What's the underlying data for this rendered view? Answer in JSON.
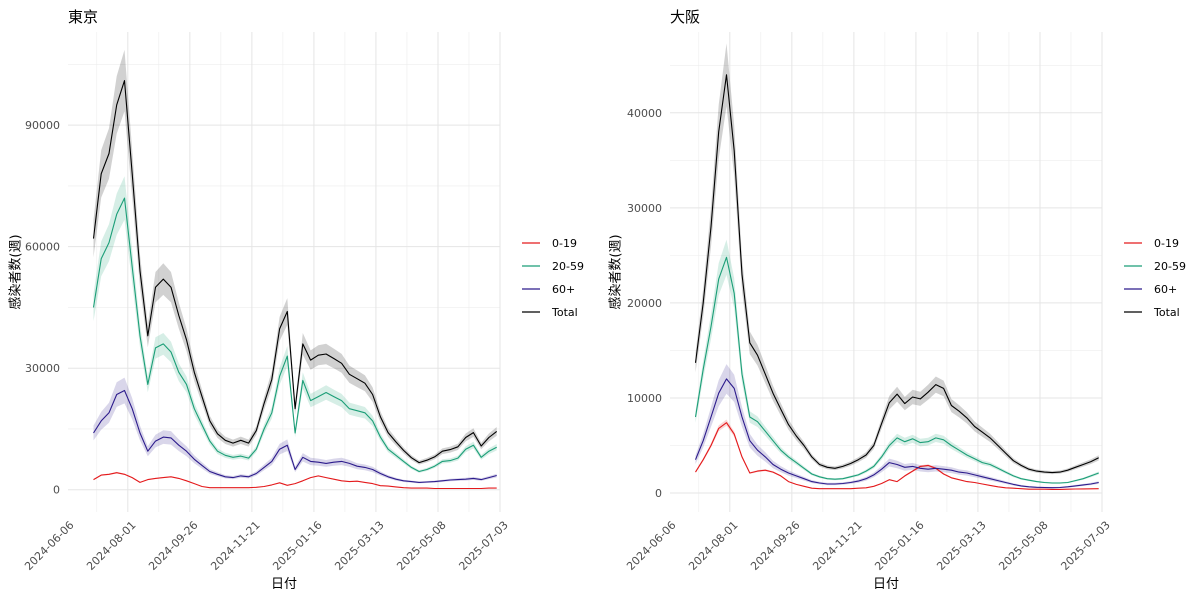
{
  "chart_data": [
    {
      "type": "line",
      "title": "東京",
      "xlabel": "日付",
      "ylabel": "感染者数(週)",
      "x_tick_labels": [
        "2024-06-06",
        "2024-08-01",
        "2024-09-26",
        "2024-11-21",
        "2025-01-16",
        "2025-03-13",
        "2025-05-08",
        "2025-07-03"
      ],
      "y_ticks": [
        0,
        30000,
        60000,
        90000
      ],
      "y_tick_labels": [
        "0",
        "30000",
        "60000",
        "90000"
      ],
      "ylim": [
        -5500,
        113000
      ],
      "xlim": [
        "2024-06-08",
        "2025-07-03"
      ],
      "grid": true,
      "legend": "right",
      "x": [
        "2024-07-01",
        "2024-07-08",
        "2024-07-15",
        "2024-07-22",
        "2024-07-29",
        "2024-08-05",
        "2024-08-12",
        "2024-08-19",
        "2024-08-26",
        "2024-09-02",
        "2024-09-09",
        "2024-09-16",
        "2024-09-23",
        "2024-09-30",
        "2024-10-07",
        "2024-10-14",
        "2024-10-21",
        "2024-10-28",
        "2024-11-04",
        "2024-11-11",
        "2024-11-18",
        "2024-11-25",
        "2024-12-02",
        "2024-12-09",
        "2024-12-16",
        "2024-12-23",
        "2024-12-30",
        "2025-01-06",
        "2025-01-13",
        "2025-01-20",
        "2025-01-27",
        "2025-02-03",
        "2025-02-10",
        "2025-02-17",
        "2025-02-24",
        "2025-03-03",
        "2025-03-10",
        "2025-03-17",
        "2025-03-24",
        "2025-03-31",
        "2025-04-07",
        "2025-04-14",
        "2025-04-21",
        "2025-04-28",
        "2025-05-05",
        "2025-05-12",
        "2025-05-19",
        "2025-05-26",
        "2025-06-02",
        "2025-06-09",
        "2025-06-16",
        "2025-06-23",
        "2025-06-30"
      ],
      "series": [
        {
          "name": "0-19",
          "color": "#e41a1c",
          "values": [
            2500,
            3600,
            3800,
            4200,
            3800,
            3000,
            1800,
            2500,
            2800,
            3000,
            3200,
            2800,
            2200,
            1500,
            800,
            500,
            500,
            500,
            500,
            500,
            500,
            600,
            800,
            1200,
            1700,
            1100,
            1500,
            2200,
            3000,
            3400,
            3000,
            2600,
            2200,
            2000,
            2100,
            1800,
            1500,
            1000,
            900,
            700,
            500,
            400,
            400,
            400,
            300,
            300,
            300,
            300,
            300,
            300,
            300,
            400,
            400
          ]
        },
        {
          "name": "20-59",
          "color": "#1b9e77",
          "values": [
            45000,
            57000,
            61000,
            68000,
            72000,
            55000,
            38000,
            26000,
            35000,
            36000,
            34000,
            29000,
            26000,
            20000,
            16000,
            12000,
            9500,
            8500,
            8000,
            8300,
            7800,
            10000,
            15000,
            19000,
            28000,
            33000,
            14000,
            27000,
            22000,
            23000,
            24000,
            23000,
            22000,
            20000,
            19500,
            19000,
            17000,
            13000,
            10000,
            8500,
            7000,
            5500,
            4500,
            5000,
            5800,
            7000,
            7200,
            7800,
            10000,
            11000,
            8000,
            9500,
            10500
          ]
        },
        {
          "name": "60+",
          "color": "#2c1b8c",
          "values": [
            14000,
            17000,
            19000,
            23500,
            24500,
            20000,
            14000,
            9500,
            12000,
            13000,
            12800,
            11000,
            9500,
            7500,
            6000,
            4500,
            3800,
            3200,
            3000,
            3400,
            3200,
            4000,
            5500,
            7000,
            10000,
            11000,
            5000,
            8000,
            7000,
            6800,
            6500,
            6800,
            7000,
            6500,
            5800,
            5500,
            5000,
            4000,
            3200,
            2600,
            2200,
            2000,
            1800,
            1900,
            2000,
            2200,
            2400,
            2500,
            2600,
            2800,
            2500,
            3000,
            3500
          ]
        },
        {
          "name": "Total",
          "color": "#000000",
          "values": [
            62000,
            78000,
            83000,
            95000,
            101000,
            78000,
            54000,
            38000,
            50000,
            52000,
            50000,
            43000,
            37000,
            29000,
            23000,
            17000,
            13800,
            12200,
            11500,
            12200,
            11500,
            14600,
            21300,
            27200,
            39700,
            44000,
            20000,
            36000,
            32000,
            33200,
            33500,
            32400,
            31200,
            28500,
            27400,
            26300,
            23500,
            18000,
            14100,
            11800,
            9700,
            7900,
            6700,
            7300,
            8100,
            9500,
            9900,
            10600,
            12900,
            14100,
            10800,
            12900,
            14400
          ]
        }
      ]
    },
    {
      "type": "line",
      "title": "大阪",
      "xlabel": "日付",
      "ylabel": "感染者数(週)",
      "x_tick_labels": [
        "2024-06-06",
        "2024-08-01",
        "2024-09-26",
        "2024-11-21",
        "2025-01-16",
        "2025-03-13",
        "2025-05-08",
        "2025-07-03"
      ],
      "y_ticks": [
        0,
        10000,
        20000,
        30000,
        40000
      ],
      "y_tick_labels": [
        "0",
        "10000",
        "20000",
        "30000",
        "40000"
      ],
      "ylim": [
        -2000,
        48500
      ],
      "xlim": [
        "2024-06-08",
        "2025-07-03"
      ],
      "grid": true,
      "legend": "right",
      "x": [
        "2024-07-01",
        "2024-07-08",
        "2024-07-15",
        "2024-07-22",
        "2024-07-29",
        "2024-08-05",
        "2024-08-12",
        "2024-08-19",
        "2024-08-26",
        "2024-09-02",
        "2024-09-09",
        "2024-09-16",
        "2024-09-23",
        "2024-09-30",
        "2024-10-07",
        "2024-10-14",
        "2024-10-21",
        "2024-10-28",
        "2024-11-04",
        "2024-11-11",
        "2024-11-18",
        "2024-11-25",
        "2024-12-02",
        "2024-12-09",
        "2024-12-16",
        "2024-12-23",
        "2024-12-30",
        "2025-01-06",
        "2025-01-13",
        "2025-01-20",
        "2025-01-27",
        "2025-02-03",
        "2025-02-10",
        "2025-02-17",
        "2025-02-24",
        "2025-03-03",
        "2025-03-10",
        "2025-03-17",
        "2025-03-24",
        "2025-03-31",
        "2025-04-07",
        "2025-04-14",
        "2025-04-21",
        "2025-04-28",
        "2025-05-05",
        "2025-05-12",
        "2025-05-19",
        "2025-05-26",
        "2025-06-02",
        "2025-06-09",
        "2025-06-16",
        "2025-06-23",
        "2025-06-30"
      ],
      "series": [
        {
          "name": "0-19",
          "color": "#e41a1c",
          "values": [
            2200,
            3500,
            5000,
            6800,
            7400,
            6200,
            3800,
            2100,
            2300,
            2400,
            2200,
            1800,
            1200,
            900,
            700,
            500,
            450,
            450,
            450,
            450,
            450,
            500,
            550,
            700,
            1000,
            1400,
            1200,
            1800,
            2300,
            2800,
            2900,
            2600,
            2000,
            1600,
            1400,
            1200,
            1100,
            950,
            800,
            650,
            550,
            500,
            450,
            400,
            400,
            400,
            380,
            380,
            400,
            420,
            430,
            440,
            450
          ]
        },
        {
          "name": "20-59",
          "color": "#1b9e77",
          "values": [
            8000,
            13000,
            17500,
            22500,
            24800,
            21000,
            12500,
            8000,
            7500,
            6500,
            5500,
            4500,
            3800,
            3200,
            2600,
            2000,
            1700,
            1500,
            1450,
            1500,
            1700,
            1900,
            2300,
            2800,
            3800,
            5000,
            5800,
            5400,
            5700,
            5300,
            5400,
            5800,
            5600,
            5000,
            4500,
            4000,
            3600,
            3200,
            3000,
            2600,
            2200,
            1800,
            1500,
            1350,
            1200,
            1100,
            1050,
            1050,
            1100,
            1300,
            1500,
            1800,
            2100
          ]
        },
        {
          "name": "60+",
          "color": "#2c1b8c",
          "values": [
            3500,
            5500,
            8000,
            10500,
            12000,
            11000,
            8000,
            5500,
            4500,
            3800,
            3000,
            2500,
            2100,
            1800,
            1500,
            1200,
            1050,
            950,
            950,
            1000,
            1100,
            1250,
            1500,
            1900,
            2500,
            3200,
            3000,
            2700,
            2800,
            2600,
            2500,
            2600,
            2500,
            2400,
            2200,
            2100,
            1900,
            1700,
            1500,
            1300,
            1100,
            900,
            750,
            650,
            600,
            580,
            560,
            580,
            650,
            750,
            850,
            950,
            1100
          ]
        },
        {
          "name": "Total",
          "color": "#000000",
          "values": [
            13700,
            20000,
            28000,
            38000,
            44000,
            36000,
            23000,
            15800,
            14500,
            12500,
            10500,
            8800,
            7200,
            6000,
            5000,
            3800,
            3000,
            2700,
            2600,
            2800,
            3100,
            3500,
            4000,
            5000,
            7300,
            9500,
            10400,
            9400,
            10100,
            9900,
            10600,
            11400,
            11000,
            9200,
            8600,
            7900,
            7000,
            6400,
            5800,
            5000,
            4200,
            3400,
            2900,
            2500,
            2300,
            2200,
            2150,
            2200,
            2400,
            2700,
            3000,
            3300,
            3700
          ]
        }
      ]
    }
  ]
}
